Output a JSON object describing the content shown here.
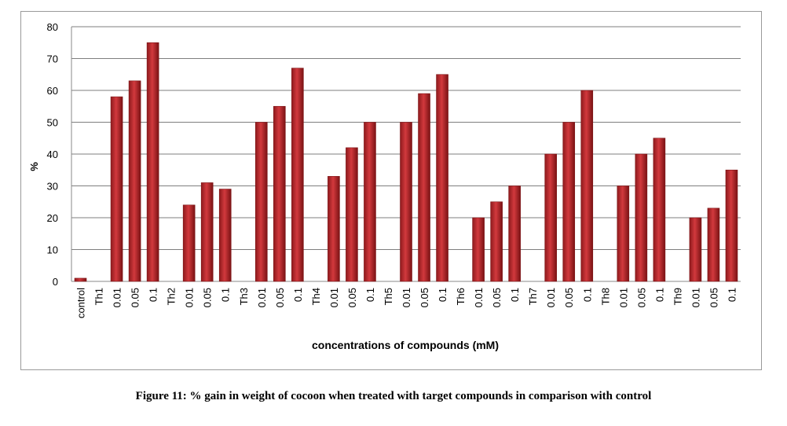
{
  "caption": "Figure 11: % gain in weight of cocoon when treated with target compounds in comparison with control",
  "colors": {
    "bar": "#c0282d",
    "bar_dark": "#7e1416",
    "grid": "#7f7f7f"
  },
  "chart_data": {
    "type": "bar",
    "ylabel": "%",
    "xlabel": "concentrations of compounds (mM)",
    "ylim": [
      0,
      80
    ],
    "yticks": [
      0,
      10,
      20,
      30,
      40,
      50,
      60,
      70,
      80
    ],
    "grid": true,
    "legend": "none",
    "categories": [
      "control",
      "Th1",
      "0.01",
      "0.05",
      "0.1",
      "Th2",
      "0.01",
      "0.05",
      "0.1",
      "Th3",
      "0.01",
      "0.05",
      "0.1",
      "Th4",
      "0.01",
      "0.05",
      "0.1",
      "Th5",
      "0.01",
      "0.05",
      "0.1",
      "Th6",
      "0.01",
      "0.05",
      "0.1",
      "Th7",
      "0.01",
      "0.05",
      "0.1",
      "Th8",
      "0.01",
      "0.05",
      "0.1",
      "Th9",
      "0.01",
      "0.05",
      "0.1"
    ],
    "values": [
      1,
      null,
      58,
      63,
      75,
      null,
      24,
      31,
      29,
      null,
      50,
      55,
      67,
      null,
      33,
      42,
      50,
      null,
      50,
      59,
      65,
      null,
      20,
      25,
      30,
      null,
      40,
      50,
      60,
      null,
      30,
      40,
      45,
      null,
      20,
      23,
      35
    ]
  }
}
